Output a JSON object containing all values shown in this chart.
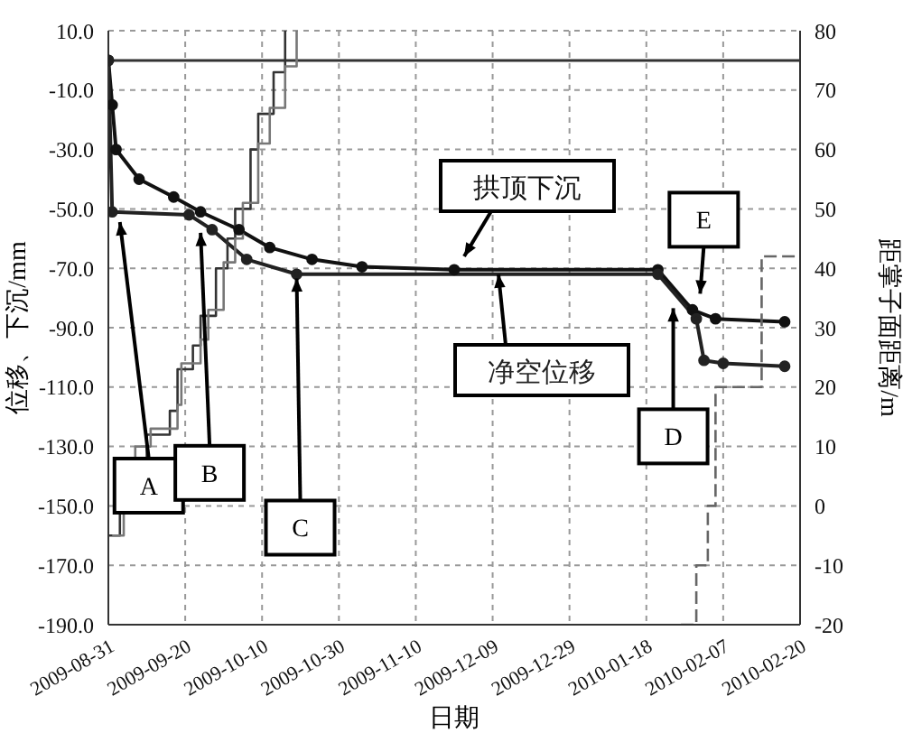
{
  "chart_data": {
    "type": "line",
    "xlabel": "日期",
    "ylabel": "位移、下沉/mm",
    "y2label": "距掌子面距离/m",
    "xlim": [
      "2009-08-31",
      "2010-02-27"
    ],
    "xticks": [
      "2009-08-31",
      "2009-09-20",
      "2009-10-10",
      "2009-10-30",
      {
        "value": "2009-11-19",
        "label": "2009-11-10"
      },
      "2009-12-09",
      "2009-12-29",
      "2010-01-18",
      "2010-02-07",
      {
        "value": "2010-02-27",
        "label": "2010-02-20"
      }
    ],
    "ylim": [
      -190,
      10
    ],
    "yticks": [
      {
        "value": 10,
        "label": "10.0"
      },
      {
        "value": -10,
        "label": "-10.0"
      },
      {
        "value": -30,
        "label": "-30.0"
      },
      {
        "value": -50,
        "label": "-50.0"
      },
      {
        "value": -70,
        "label": "-70.0"
      },
      {
        "value": -90,
        "label": "-90.0"
      },
      {
        "value": -110,
        "label": "-110.0"
      },
      {
        "value": -130,
        "label": "-130.0"
      },
      {
        "value": -150,
        "label": "-150.0"
      },
      {
        "value": -170,
        "label": "-170.0"
      },
      {
        "value": -190,
        "label": "-190.0"
      }
    ],
    "y2lim": [
      -20,
      80
    ],
    "y2ticks": [
      -20,
      -10,
      0,
      10,
      20,
      30,
      40,
      50,
      60,
      70,
      80
    ],
    "grid": true,
    "legend": false,
    "ref_lines": [
      {
        "axis": "y",
        "value": 0,
        "color": "#333333"
      }
    ],
    "series": [
      {
        "name": "拱顶下沉",
        "type": "line",
        "color": "#111111",
        "marker": "circle",
        "x": [
          "2009-08-31",
          "2009-09-01",
          "2009-09-02",
          "2009-09-08",
          "2009-09-17",
          "2009-09-24",
          "2009-10-04",
          "2009-10-12",
          "2009-10-23",
          "2009-11-05",
          "2009-11-29",
          "2010-01-21",
          "2010-01-30",
          "2010-02-05",
          "2010-02-23"
        ],
        "values": [
          0,
          -15,
          -30,
          -40,
          -46,
          -51,
          -57,
          -63,
          -67,
          -69.5,
          -70.5,
          -70.5,
          -84,
          -87,
          -88
        ]
      },
      {
        "name": "净空位移",
        "type": "line",
        "color": "#222222",
        "marker": "circle",
        "x": [
          "2009-08-31",
          "2009-09-01",
          "2009-09-21",
          "2009-09-27",
          "2009-10-06",
          "2009-10-19",
          "2010-01-21",
          "2010-01-31",
          "2010-02-02",
          "2010-02-07",
          "2010-02-23"
        ],
        "values": [
          0,
          -51,
          -52,
          -57,
          -67,
          -72,
          -72,
          -87,
          -101,
          -102,
          -103
        ]
      },
      {
        "type": "step",
        "axis": "y2",
        "color": "#333333",
        "marker": "none",
        "x": [
          "2009-08-31",
          "2009-09-03",
          "2009-09-05",
          "2009-09-10",
          "2009-09-16",
          "2009-09-18",
          "2009-09-22",
          "2009-09-24",
          "2009-09-28",
          "2009-10-01",
          "2009-10-03",
          "2009-10-07",
          "2009-10-09",
          "2009-10-13",
          "2009-10-16"
        ],
        "values": [
          -5,
          -1,
          8,
          12,
          16,
          23,
          27,
          32,
          40,
          45,
          50,
          60,
          66,
          73,
          80
        ]
      },
      {
        "type": "step",
        "axis": "y2",
        "color": "#777777",
        "marker": "none",
        "x": [
          "2009-09-01",
          "2009-09-04",
          "2009-09-07",
          "2009-09-11",
          "2009-09-18",
          "2009-09-19",
          "2009-09-24",
          "2009-09-26",
          "2009-09-30",
          "2009-10-03",
          "2009-10-05",
          "2009-10-09",
          "2009-10-12",
          "2009-10-16",
          "2009-10-19"
        ],
        "values": [
          -5,
          -1,
          10,
          13,
          17,
          24,
          28,
          33,
          41,
          45,
          51,
          61,
          67,
          74,
          80
        ]
      },
      {
        "type": "step",
        "axis": "y2",
        "color": "#666666",
        "marker": "none",
        "line_style": "dashed",
        "x": [
          "2010-01-27",
          "2010-01-31",
          "2010-02-03",
          "2010-02-05",
          "2010-02-17",
          "2010-02-27"
        ],
        "values": [
          -20,
          -10,
          0,
          20,
          42,
          42
        ]
      }
    ],
    "annotations": [
      {
        "text": "A",
        "x": "2009-09-03",
        "y": -52
      },
      {
        "text": "B",
        "x": "2009-09-24",
        "y": -55.6
      },
      {
        "text": "C",
        "x": "2009-10-19",
        "y": -71
      },
      {
        "text": "D",
        "x": "2010-01-25",
        "y": -81
      },
      {
        "text": "E",
        "x": "2010-02-01",
        "y": -81
      }
    ]
  }
}
